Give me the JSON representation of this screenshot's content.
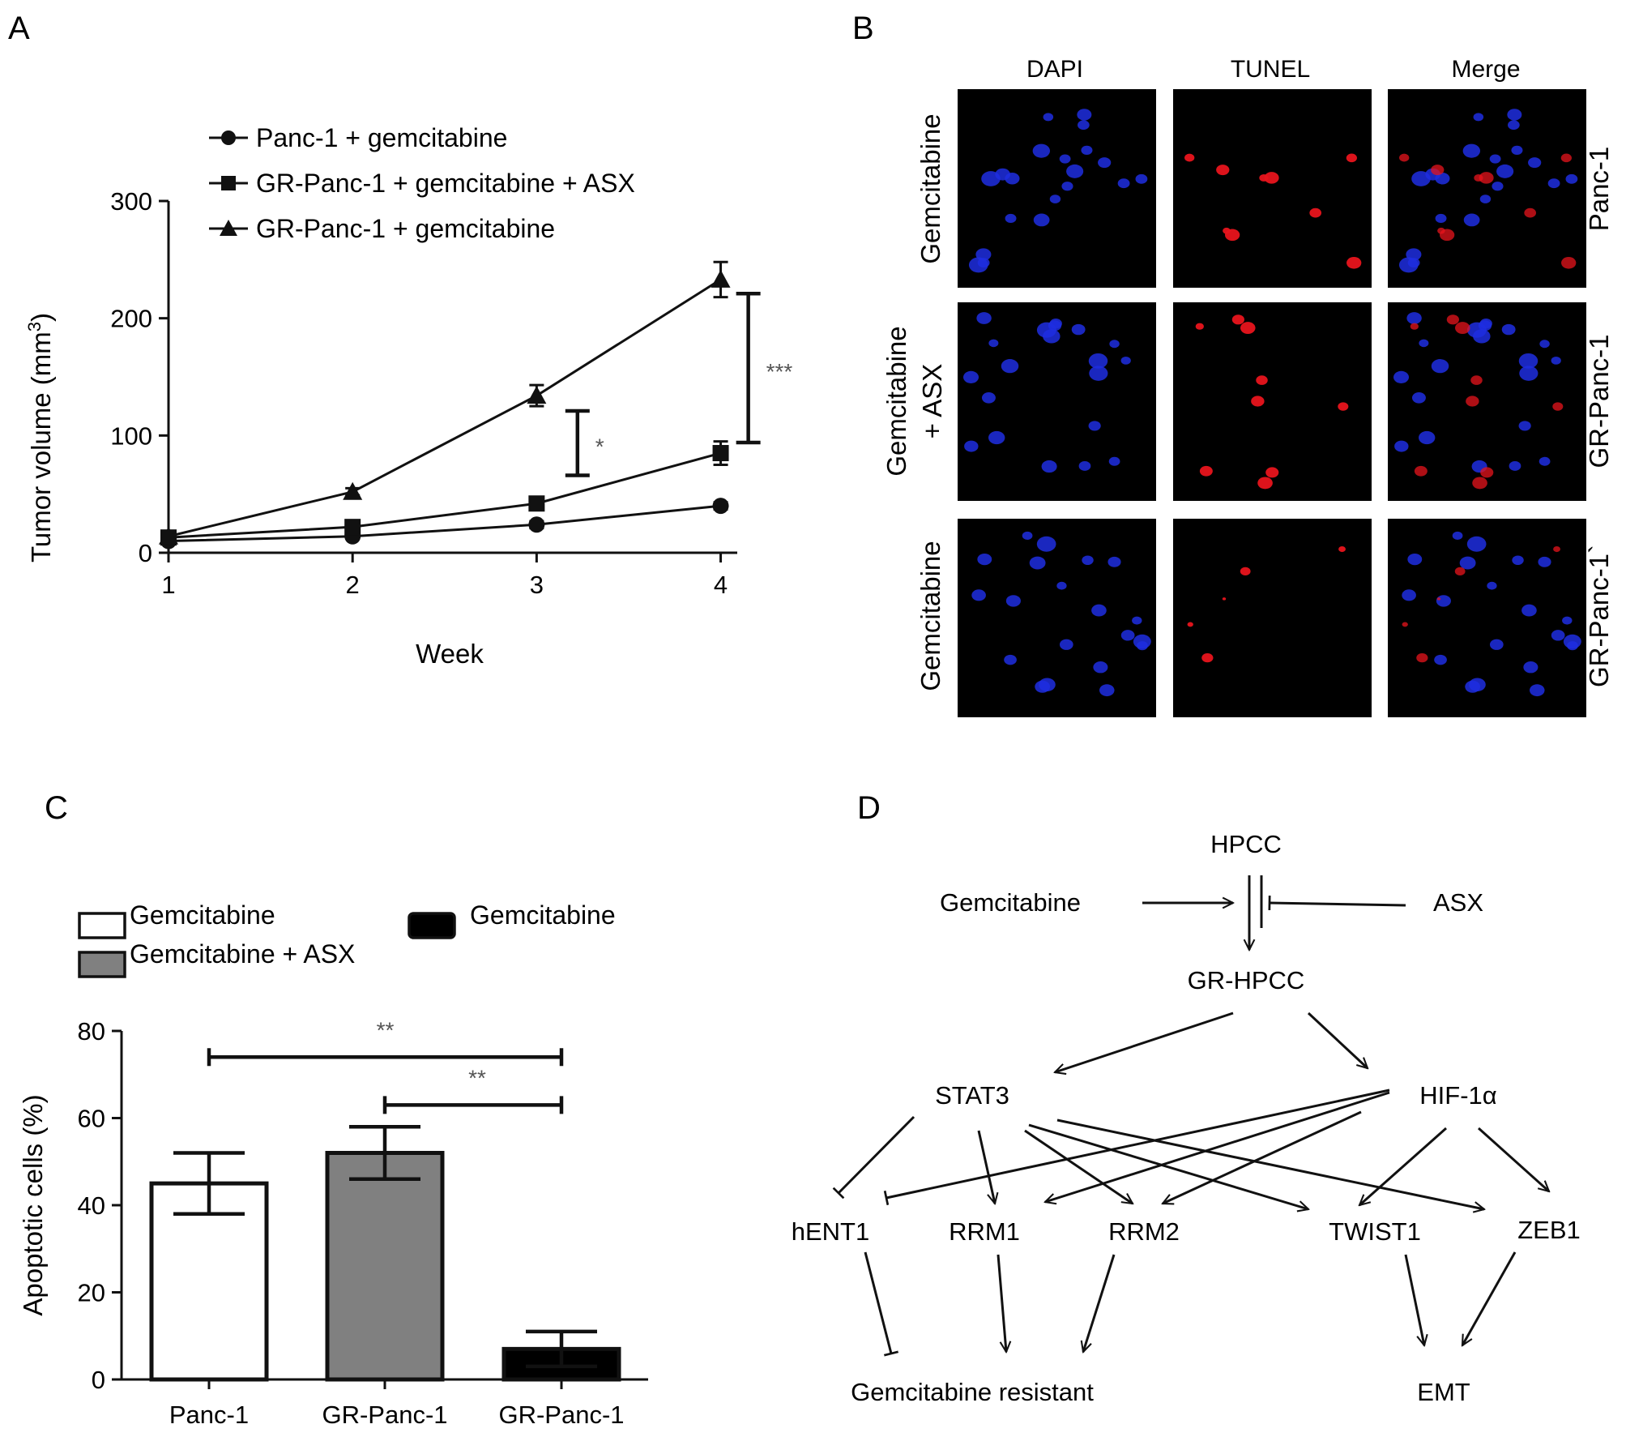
{
  "panel_labels": [
    "A",
    "B",
    "C",
    "D"
  ],
  "chart_data": [
    {
      "type": "line",
      "panel": "A",
      "xlabel": "Week",
      "ylabel": "Tumor volume (mm",
      "ylabel_sup": "3",
      "ylabel_close": ")",
      "x": [
        1,
        2,
        3,
        4
      ],
      "xticks": [
        "1",
        "2",
        "3",
        "4"
      ],
      "yticks": [
        "0",
        "100",
        "200",
        "300"
      ],
      "ylim": [
        0,
        300
      ],
      "legend_placement": "top-left",
      "series": [
        {
          "name": "Panc-1 + gemcitabine",
          "marker": "circle",
          "values": [
            10,
            14,
            24,
            40
          ],
          "errors": [
            2,
            2,
            3,
            3
          ]
        },
        {
          "name": "GR-Panc-1 + gemcitabine + ASX",
          "marker": "square",
          "values": [
            13,
            22,
            42,
            85
          ],
          "errors": [
            2,
            3,
            4,
            10
          ]
        },
        {
          "name": "GR-Panc-1 + gemcitabine",
          "marker": "triangle",
          "values": [
            14,
            52,
            134,
            233
          ],
          "errors": [
            2,
            3,
            9,
            15
          ]
        }
      ],
      "annotations": [
        {
          "text": "*",
          "x_between": [
            3,
            3.2
          ],
          "y_range": [
            66,
            121
          ]
        },
        {
          "text": "***",
          "x_between": [
            4,
            4.15
          ],
          "y_range": [
            94,
            221
          ]
        }
      ]
    },
    {
      "type": "bar",
      "panel": "C",
      "ylabel": "Apoptotic cells (%)",
      "categories": [
        "Panc-1",
        "GR-Panc-1",
        "GR-Panc-1"
      ],
      "yticks": [
        "0",
        "20",
        "40",
        "60",
        "80"
      ],
      "ylim": [
        0,
        80
      ],
      "legend_placement": "top",
      "series": [
        {
          "name": "Gemcitabine",
          "color": "#ffffff",
          "value": 45,
          "error": 7
        },
        {
          "name": "Gemcitabine + ASX",
          "color": "#808080",
          "value": 52,
          "error": 6
        },
        {
          "name": "Gemcitabine",
          "color": "#000000",
          "value": 7,
          "error": 4
        }
      ],
      "significance": [
        {
          "text": "**",
          "from": 0,
          "to": 2,
          "y": 74
        },
        {
          "text": "**",
          "from": 1,
          "to": 2,
          "y": 63
        }
      ]
    }
  ],
  "panel_b": {
    "columns": [
      "DAPI",
      "TUNEL",
      "Merge"
    ],
    "row_left": [
      [
        "Gemcitabine"
      ],
      [
        "Gemcitabine",
        "+ ASX"
      ],
      [
        "Gemcitabine"
      ]
    ],
    "row_right": [
      "Panc-1",
      "GR-Panc-1",
      "GR-Panc-1`"
    ],
    "colors": {
      "dapi": "#1f2ee0",
      "tunel": "#e8141c",
      "background": "#000000"
    }
  },
  "panel_d": {
    "nodes": {
      "hpcc": "HPCC",
      "gemcitabine": "Gemcitabine",
      "asx": "ASX",
      "gr_hpcc": "GR-HPCC",
      "stat3": "STAT3",
      "hif1a": "HIF-1α",
      "hent1": "hENT1",
      "rrm1": "RRM1",
      "rrm2": "RRM2",
      "twist1": "TWIST1",
      "zeb1": "ZEB1",
      "resistant": "Gemcitabine resistant",
      "emt": "EMT"
    }
  }
}
